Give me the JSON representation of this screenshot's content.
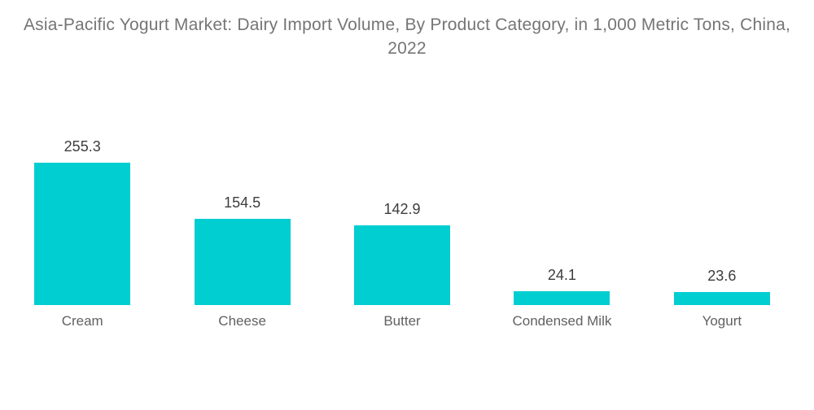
{
  "title": {
    "text": "Asia-Pacific Yogurt Market: Dairy Import Volume, By Product Category, in 1,000 Metric Tons, China, 2022"
  },
  "chart_data": {
    "type": "bar",
    "title": "Asia-Pacific Yogurt Market: Dairy Import Volume, By Product Category, in 1,000 Metric Tons, China, 2022",
    "categories": [
      "Cream",
      "Cheese",
      "Butter",
      "Condensed Milk",
      "Yogurt"
    ],
    "values": [
      255.3,
      154.5,
      142.9,
      24.1,
      23.6
    ],
    "value_labels": [
      "255.3",
      "154.5",
      "142.9",
      "24.1",
      "23.6"
    ],
    "xlabel": "",
    "ylabel": "",
    "ylim": [
      0,
      280
    ],
    "grid": false,
    "legend": false,
    "bar_color": "#00CED1"
  },
  "colors": {
    "background": "#ffffff",
    "bar": "#00CED1",
    "title_text": "#757575",
    "value_label_text": "#3d3d3d",
    "category_label_text": "#616161"
  }
}
